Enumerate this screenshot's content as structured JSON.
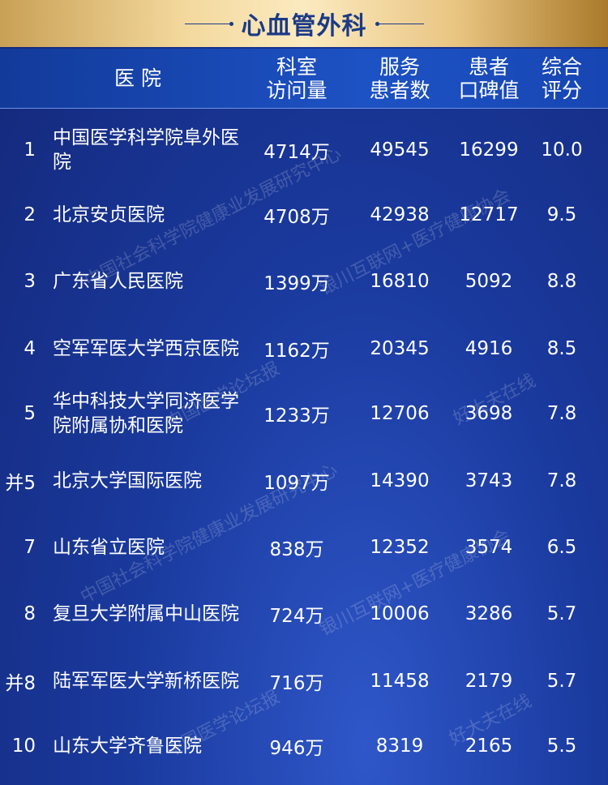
{
  "title": "心血管外科",
  "headers": {
    "hospital": "医 院",
    "visits": [
      "科室",
      "访问量"
    ],
    "patients": [
      "服务",
      "患者数"
    ],
    "reputation": [
      "患者",
      "口碑值"
    ],
    "score": [
      "综合",
      "评分"
    ]
  },
  "rows": [
    {
      "rank": "1",
      "name": "中国医学科学院阜外医院",
      "visits": "4714万",
      "patients": "49545",
      "reputation": "16299",
      "score": "10.0"
    },
    {
      "rank": "2",
      "name": "北京安贞医院",
      "visits": "4708万",
      "patients": "42938",
      "reputation": "12717",
      "score": "9.5"
    },
    {
      "rank": "3",
      "name": "广东省人民医院",
      "visits": "1399万",
      "patients": "16810",
      "reputation": "5092",
      "score": "8.8"
    },
    {
      "rank": "4",
      "name": "空军军医大学西京医院",
      "visits": "1162万",
      "patients": "20345",
      "reputation": "4916",
      "score": "8.5"
    },
    {
      "rank": "5",
      "name": "华中科技大学同济医学院附属协和医院",
      "visits": "1233万",
      "patients": "12706",
      "reputation": "3698",
      "score": "7.8"
    },
    {
      "rank": "并5",
      "name": "北京大学国际医院",
      "visits": "1097万",
      "patients": "14390",
      "reputation": "3743",
      "score": "7.8"
    },
    {
      "rank": "7",
      "name": "山东省立医院",
      "visits": "838万",
      "patients": "12352",
      "reputation": "3574",
      "score": "6.5"
    },
    {
      "rank": "8",
      "name": "复旦大学附属中山医院",
      "visits": "724万",
      "patients": "10006",
      "reputation": "3286",
      "score": "5.7"
    },
    {
      "rank": "并8",
      "name": "陆军军医大学新桥医院",
      "visits": "716万",
      "patients": "11458",
      "reputation": "2179",
      "score": "5.7"
    },
    {
      "rank": "10",
      "name": "山东大学齐鲁医院",
      "visits": "946万",
      "patients": "8319",
      "reputation": "2165",
      "score": "5.5"
    }
  ],
  "watermarks": [
    "中国社会科学院健康业发展研究中心",
    "银川互联网+医疗健康协会",
    "中国医学论坛报",
    "好大夫在线"
  ]
}
